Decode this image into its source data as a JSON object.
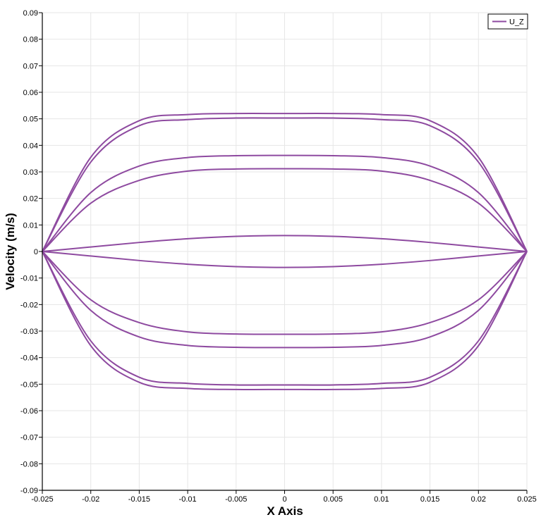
{
  "chart_data": {
    "type": "line",
    "title": "",
    "xlabel": "X Axis",
    "ylabel": "Velocity (m/s)",
    "xlim": [
      -0.025,
      0.025
    ],
    "ylim": [
      -0.09,
      0.09
    ],
    "x_ticks": [
      "-0.025",
      "-0.02",
      "-0.015",
      "-0.01",
      "-0.005",
      "0",
      "0.005",
      "0.01",
      "0.015",
      "0.02",
      "0.025"
    ],
    "y_ticks": [
      "0.09",
      "0.08",
      "0.07",
      "0.06",
      "0.05",
      "0.04",
      "0.03",
      "0.02",
      "0.01",
      "0",
      "-0.01",
      "-0.02",
      "-0.03",
      "-0.04",
      "-0.05",
      "-0.06",
      "-0.07",
      "-0.08",
      "-0.09"
    ],
    "grid": true,
    "legend": {
      "position": "top-right",
      "entries": [
        "U_Z"
      ]
    },
    "series_color": "#8e4aa0",
    "series": [
      {
        "name": "U_Z",
        "x": [
          -0.025,
          -0.02,
          -0.015,
          -0.01,
          -0.005,
          0,
          0.005,
          0.01,
          0.015,
          0.02,
          0.025
        ],
        "y": [
          0,
          0.0355,
          0.0493,
          0.0516,
          0.052,
          0.052,
          0.052,
          0.0516,
          0.0493,
          0.0355,
          0
        ]
      },
      {
        "name": "U_Z",
        "x": [
          -0.025,
          -0.02,
          -0.015,
          -0.01,
          -0.005,
          0,
          0.005,
          0.01,
          0.015,
          0.02,
          0.025
        ],
        "y": [
          0,
          0.0337,
          0.0474,
          0.0497,
          0.0503,
          0.0503,
          0.0503,
          0.0497,
          0.0474,
          0.0337,
          0
        ]
      },
      {
        "name": "U_Z",
        "x": [
          -0.025,
          -0.02,
          -0.015,
          -0.01,
          -0.005,
          0,
          0.005,
          0.01,
          0.015,
          0.02,
          0.025
        ],
        "y": [
          0,
          0.0222,
          0.0322,
          0.0354,
          0.0361,
          0.0362,
          0.0361,
          0.0354,
          0.0322,
          0.0222,
          0
        ]
      },
      {
        "name": "U_Z",
        "x": [
          -0.025,
          -0.02,
          -0.015,
          -0.01,
          -0.005,
          0,
          0.005,
          0.01,
          0.015,
          0.02,
          0.025
        ],
        "y": [
          0,
          0.0182,
          0.0268,
          0.0303,
          0.0311,
          0.0312,
          0.0311,
          0.0303,
          0.0268,
          0.0182,
          0
        ]
      },
      {
        "name": "U_Z",
        "x": [
          -0.025,
          -0.02,
          -0.015,
          -0.01,
          -0.005,
          0,
          0.005,
          0.01,
          0.015,
          0.02,
          0.025
        ],
        "y": [
          0,
          0.0017,
          0.0034,
          0.0048,
          0.0057,
          0.006,
          0.0057,
          0.0048,
          0.0034,
          0.0017,
          0
        ]
      },
      {
        "name": "U_Z",
        "x": [
          -0.025,
          -0.02,
          -0.015,
          -0.01,
          -0.005,
          0,
          0.005,
          0.01,
          0.015,
          0.02,
          0.025
        ],
        "y": [
          0,
          -0.0017,
          -0.0034,
          -0.0048,
          -0.0057,
          -0.006,
          -0.0057,
          -0.0048,
          -0.0034,
          -0.0017,
          0
        ]
      },
      {
        "name": "U_Z",
        "x": [
          -0.025,
          -0.02,
          -0.015,
          -0.01,
          -0.005,
          0,
          0.005,
          0.01,
          0.015,
          0.02,
          0.025
        ],
        "y": [
          0,
          -0.0182,
          -0.0268,
          -0.0303,
          -0.0311,
          -0.0312,
          -0.0311,
          -0.0303,
          -0.0268,
          -0.0182,
          0
        ]
      },
      {
        "name": "U_Z",
        "x": [
          -0.025,
          -0.02,
          -0.015,
          -0.01,
          -0.005,
          0,
          0.005,
          0.01,
          0.015,
          0.02,
          0.025
        ],
        "y": [
          0,
          -0.0222,
          -0.0322,
          -0.0354,
          -0.0361,
          -0.0362,
          -0.0361,
          -0.0354,
          -0.0322,
          -0.0222,
          0
        ]
      },
      {
        "name": "U_Z",
        "x": [
          -0.025,
          -0.02,
          -0.015,
          -0.01,
          -0.005,
          0,
          0.005,
          0.01,
          0.015,
          0.02,
          0.025
        ],
        "y": [
          0,
          -0.0337,
          -0.0474,
          -0.0497,
          -0.0503,
          -0.0503,
          -0.0503,
          -0.0497,
          -0.0474,
          -0.0337,
          0
        ]
      },
      {
        "name": "U_Z",
        "x": [
          -0.025,
          -0.02,
          -0.015,
          -0.01,
          -0.005,
          0,
          0.005,
          0.01,
          0.015,
          0.02,
          0.025
        ],
        "y": [
          0,
          -0.0355,
          -0.0493,
          -0.0516,
          -0.052,
          -0.052,
          -0.052,
          -0.0516,
          -0.0493,
          -0.0355,
          0
        ]
      }
    ]
  }
}
